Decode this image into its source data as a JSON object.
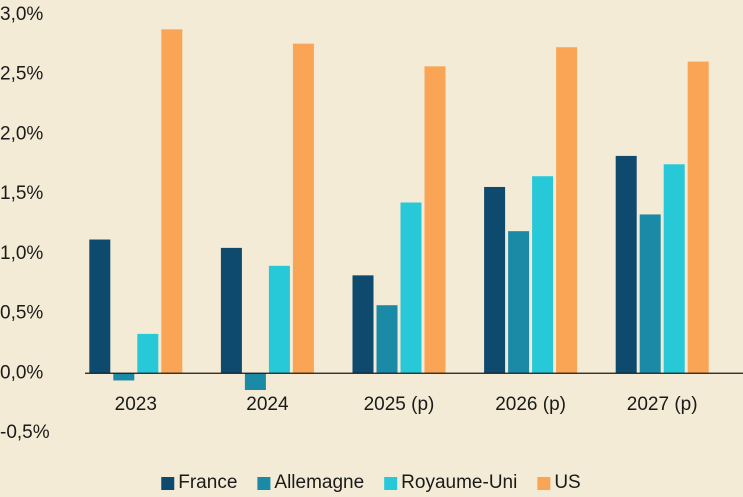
{
  "chart_data": {
    "type": "bar",
    "categories": [
      "2023",
      "2024",
      "2025 (p)",
      "2026 (p)",
      "2027 (p)"
    ],
    "series": [
      {
        "name": "France",
        "color": "#0e4a6d",
        "values": [
          1.12,
          1.05,
          0.82,
          1.56,
          1.82
        ]
      },
      {
        "name": "Allemagne",
        "color": "#1a8aa6",
        "values": [
          -0.06,
          -0.14,
          0.57,
          1.19,
          1.33
        ]
      },
      {
        "name": "Royaume-Uni",
        "color": "#27c8d8",
        "values": [
          0.33,
          0.9,
          1.43,
          1.65,
          1.75
        ]
      },
      {
        "name": "US",
        "color": "#f9a555",
        "values": [
          2.88,
          2.76,
          2.57,
          2.73,
          2.61
        ]
      }
    ],
    "ylim": [
      -0.5,
      3.0
    ],
    "yticks": [
      {
        "value": -0.5,
        "label": "-0,5%"
      },
      {
        "value": 0,
        "label": "0,0%"
      },
      {
        "value": 0.5,
        "label": "0,5%"
      },
      {
        "value": 1.0,
        "label": "1,0%"
      },
      {
        "value": 1.5,
        "label": "1,5%"
      },
      {
        "value": 2.0,
        "label": "2,0%"
      },
      {
        "value": 2.5,
        "label": "2,5%"
      },
      {
        "value": 3.0,
        "label": "3,0%"
      }
    ],
    "legend": "bottom"
  }
}
